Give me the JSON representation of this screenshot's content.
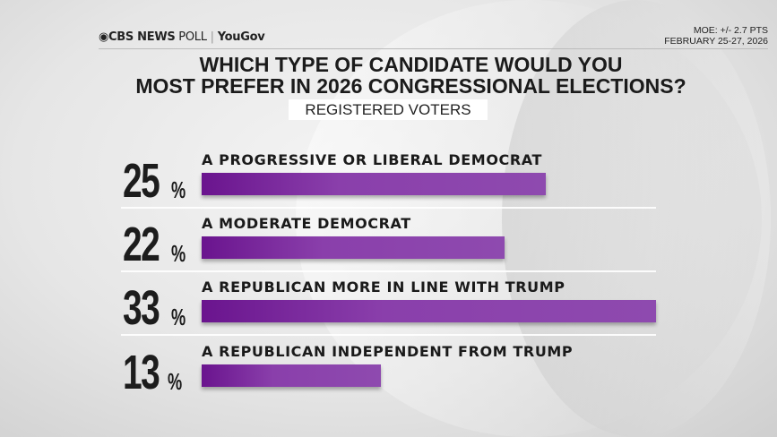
{
  "header": {
    "logo_brand": "CBS NEWS",
    "logo_poll": "POLL",
    "logo_partner": "YouGov",
    "moe": "MOE: +/- 2.7 PTS",
    "dates": "FEBRUARY 25-27, 2026"
  },
  "chart_data": {
    "type": "bar",
    "title": "WHICH TYPE OF CANDIDATE WOULD YOU MOST PREFER IN 2026 CONGRESSIONAL ELECTIONS?",
    "title_line1": "WHICH TYPE OF CANDIDATE WOULD YOU",
    "title_line2": "MOST PREFER IN 2026 CONGRESSIONAL ELECTIONS?",
    "subtitle": "REGISTERED VOTERS",
    "orientation": "horizontal",
    "categories": [
      "A PROGRESSIVE OR LIBERAL DEMOCRAT",
      "A MODERATE DEMOCRAT",
      "A REPUBLICAN MORE IN LINE WITH TRUMP",
      "A REPUBLICAN INDEPENDENT FROM TRUMP"
    ],
    "values": [
      25,
      22,
      33,
      13
    ],
    "value_labels": [
      "25",
      "22",
      "33",
      "13"
    ],
    "unit": "%",
    "bar_color": "#8a3fab"
  }
}
